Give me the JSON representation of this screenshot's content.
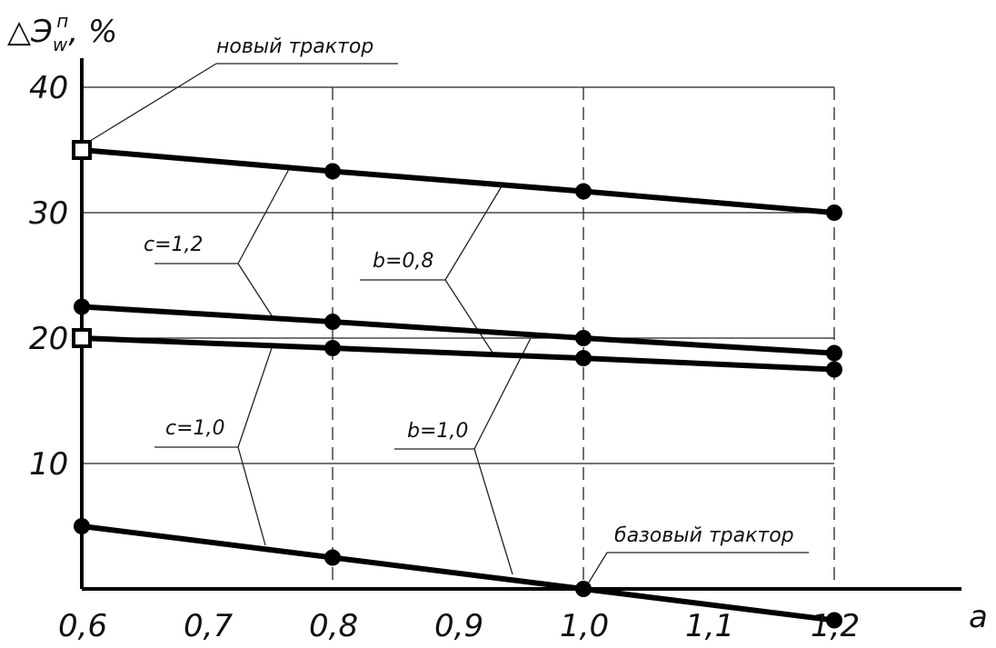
{
  "chart_data": {
    "type": "line",
    "ylabel": "△Э",
    "ylabel_super": "п",
    "ylabel_sub": "w",
    "ylabel_unit": ", %",
    "xlabel": "a",
    "x_ticks": [
      "0,6",
      "0,7",
      "0,8",
      "0,9",
      "1,0",
      "1,1",
      "1,2"
    ],
    "y_ticks": [
      "10",
      "20",
      "30",
      "40"
    ],
    "xlim": [
      0.6,
      1.2
    ],
    "ylim": [
      0,
      40
    ],
    "grid": "horizontal solid, vertical dashed",
    "series": [
      {
        "values": [
          [
            0.6,
            35.0
          ],
          [
            0.8,
            33.3
          ],
          [
            1.0,
            31.7
          ],
          [
            1.2,
            30.0
          ]
        ],
        "start_marker": "square"
      },
      {
        "values": [
          [
            0.6,
            22.5
          ],
          [
            0.8,
            21.3
          ],
          [
            1.0,
            20.0
          ],
          [
            1.2,
            18.8
          ]
        ],
        "start_marker": "circle"
      },
      {
        "values": [
          [
            0.6,
            20.0
          ],
          [
            0.8,
            19.2
          ],
          [
            1.0,
            18.4
          ],
          [
            1.2,
            17.5
          ]
        ],
        "start_marker": "square"
      },
      {
        "values": [
          [
            0.6,
            5.0
          ],
          [
            0.8,
            2.5
          ],
          [
            1.0,
            0.0
          ],
          [
            1.2,
            -2.5
          ]
        ],
        "start_marker": "circle"
      }
    ],
    "annotations": [
      {
        "text": "новый трактор",
        "target": [
          0.6,
          35.0
        ]
      },
      {
        "text": "базовый трактор",
        "target": [
          1.0,
          0.0
        ]
      },
      {
        "text": "c=1,2"
      },
      {
        "text": "b=0,8"
      },
      {
        "text": "c=1,0"
      },
      {
        "text": "b=1,0"
      }
    ]
  }
}
